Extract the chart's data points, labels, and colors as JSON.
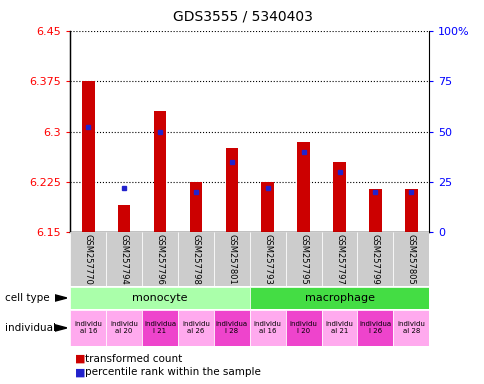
{
  "title": "GDS3555 / 5340403",
  "samples": [
    "GSM257770",
    "GSM257794",
    "GSM257796",
    "GSM257798",
    "GSM257801",
    "GSM257793",
    "GSM257795",
    "GSM257797",
    "GSM257799",
    "GSM257805"
  ],
  "transformed_count": [
    6.375,
    6.19,
    6.33,
    6.225,
    6.275,
    6.225,
    6.285,
    6.255,
    6.215,
    6.215
  ],
  "percentile_rank": [
    52,
    22,
    50,
    20,
    35,
    22,
    40,
    30,
    20,
    20
  ],
  "ylim_left": [
    6.15,
    6.45
  ],
  "ylim_right": [
    0,
    100
  ],
  "yticks_left": [
    6.15,
    6.225,
    6.3,
    6.375,
    6.45
  ],
  "yticks_right": [
    0,
    25,
    50,
    75,
    100
  ],
  "ytick_left_labels": [
    "6.15",
    "6.225",
    "6.3",
    "6.375",
    "6.45"
  ],
  "ytick_right_labels": [
    "0",
    "25",
    "50",
    "75",
    "100%"
  ],
  "bar_color": "#cc0000",
  "blue_color": "#2222cc",
  "cell_type_monocyte": "monocyte",
  "cell_type_macrophage": "macrophage",
  "monocyte_color": "#aaffaa",
  "macrophage_color": "#44dd44",
  "individual_colors": [
    "#ffaaee",
    "#ffaaee",
    "#ee44cc",
    "#ffaaee",
    "#ee44cc",
    "#ffaaee",
    "#ee44cc",
    "#ffaaee",
    "#ee44cc",
    "#ffaaee"
  ],
  "indiv_labels": [
    "individu\nal 16",
    "individu\nal 20",
    "individua\nl 21",
    "individu\nal 26",
    "individua\nl 28",
    "individu\nal 16",
    "individu\nl 20",
    "individu\nal 21",
    "individua\nl 26",
    "individu\nal 28"
  ],
  "bar_width": 0.35,
  "ybase": 6.15,
  "legend_red": "transformed count",
  "legend_blue": "percentile rank within the sample",
  "grid_dotted_color": "#000000",
  "bg_xtick_color": "#cccccc"
}
